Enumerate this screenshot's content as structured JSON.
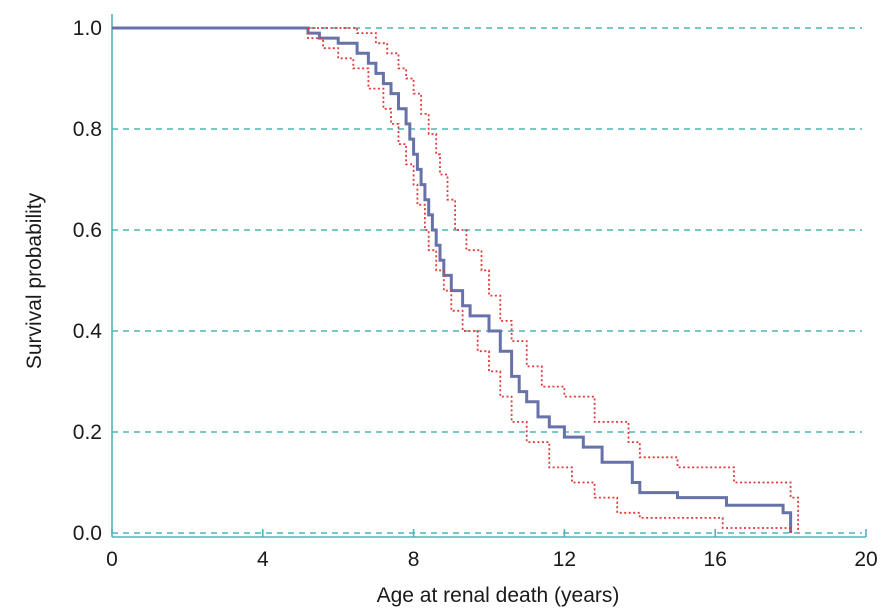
{
  "chart_data": {
    "type": "line",
    "title": "",
    "xlabel": "Age at renal death (years)",
    "ylabel": "Survival probability",
    "xlim": [
      0,
      20
    ],
    "ylim": [
      0,
      1.0
    ],
    "x_ticks": [
      "0",
      "4",
      "8",
      "12",
      "16",
      "20"
    ],
    "y_ticks": [
      "0.0",
      "0.2",
      "0.4",
      "0.6",
      "0.8",
      "1.0"
    ],
    "x_tick_values": [
      0,
      4,
      8,
      12,
      16,
      20
    ],
    "y_tick_values": [
      0,
      0.2,
      0.4,
      0.6,
      0.8,
      1.0
    ],
    "grid": "horizontal dashed",
    "colors": {
      "survival": "#6672a8",
      "ci": "#e03a3a",
      "grid": "#4fb5b5"
    },
    "series": [
      {
        "style": "solid",
        "points": [
          [
            0,
            1.0
          ],
          [
            5.2,
            1.0
          ],
          [
            5.2,
            0.99
          ],
          [
            5.5,
            0.99
          ],
          [
            5.5,
            0.98
          ],
          [
            6.0,
            0.98
          ],
          [
            6.0,
            0.97
          ],
          [
            6.5,
            0.97
          ],
          [
            6.5,
            0.95
          ],
          [
            6.8,
            0.95
          ],
          [
            6.8,
            0.93
          ],
          [
            7.0,
            0.93
          ],
          [
            7.0,
            0.91
          ],
          [
            7.2,
            0.91
          ],
          [
            7.2,
            0.89
          ],
          [
            7.4,
            0.89
          ],
          [
            7.4,
            0.87
          ],
          [
            7.6,
            0.87
          ],
          [
            7.6,
            0.84
          ],
          [
            7.8,
            0.84
          ],
          [
            7.8,
            0.81
          ],
          [
            7.9,
            0.81
          ],
          [
            7.9,
            0.78
          ],
          [
            8.0,
            0.78
          ],
          [
            8.0,
            0.75
          ],
          [
            8.1,
            0.75
          ],
          [
            8.1,
            0.72
          ],
          [
            8.2,
            0.72
          ],
          [
            8.2,
            0.69
          ],
          [
            8.3,
            0.69
          ],
          [
            8.3,
            0.66
          ],
          [
            8.4,
            0.66
          ],
          [
            8.4,
            0.63
          ],
          [
            8.5,
            0.63
          ],
          [
            8.5,
            0.6
          ],
          [
            8.6,
            0.6
          ],
          [
            8.6,
            0.57
          ],
          [
            8.7,
            0.57
          ],
          [
            8.7,
            0.54
          ],
          [
            8.8,
            0.54
          ],
          [
            8.8,
            0.51
          ],
          [
            9.0,
            0.51
          ],
          [
            9.0,
            0.48
          ],
          [
            9.3,
            0.48
          ],
          [
            9.3,
            0.45
          ],
          [
            9.5,
            0.45
          ],
          [
            9.5,
            0.43
          ],
          [
            10.0,
            0.43
          ],
          [
            10.0,
            0.4
          ],
          [
            10.3,
            0.4
          ],
          [
            10.3,
            0.36
          ],
          [
            10.6,
            0.36
          ],
          [
            10.6,
            0.31
          ],
          [
            10.8,
            0.31
          ],
          [
            10.8,
            0.28
          ],
          [
            11.0,
            0.28
          ],
          [
            11.0,
            0.26
          ],
          [
            11.3,
            0.26
          ],
          [
            11.3,
            0.23
          ],
          [
            11.6,
            0.23
          ],
          [
            11.6,
            0.21
          ],
          [
            12.0,
            0.21
          ],
          [
            12.0,
            0.19
          ],
          [
            12.5,
            0.19
          ],
          [
            12.5,
            0.17
          ],
          [
            13.0,
            0.17
          ],
          [
            13.0,
            0.14
          ],
          [
            13.8,
            0.14
          ],
          [
            13.8,
            0.1
          ],
          [
            14.0,
            0.1
          ],
          [
            14.0,
            0.08
          ],
          [
            15.0,
            0.08
          ],
          [
            15.0,
            0.07
          ],
          [
            16.3,
            0.07
          ],
          [
            16.3,
            0.055
          ],
          [
            17.8,
            0.055
          ],
          [
            17.8,
            0.04
          ],
          [
            18.0,
            0.04
          ],
          [
            18.0,
            0.0
          ]
        ]
      },
      {
        "style": "dotted",
        "points": [
          [
            5.2,
            1.0
          ],
          [
            6.5,
            1.0
          ],
          [
            6.5,
            0.99
          ],
          [
            7.0,
            0.99
          ],
          [
            7.0,
            0.97
          ],
          [
            7.3,
            0.97
          ],
          [
            7.3,
            0.95
          ],
          [
            7.6,
            0.95
          ],
          [
            7.6,
            0.92
          ],
          [
            7.8,
            0.92
          ],
          [
            7.8,
            0.9
          ],
          [
            8.0,
            0.9
          ],
          [
            8.0,
            0.87
          ],
          [
            8.2,
            0.87
          ],
          [
            8.2,
            0.83
          ],
          [
            8.4,
            0.83
          ],
          [
            8.4,
            0.79
          ],
          [
            8.6,
            0.79
          ],
          [
            8.6,
            0.75
          ],
          [
            8.7,
            0.75
          ],
          [
            8.7,
            0.71
          ],
          [
            8.9,
            0.71
          ],
          [
            8.9,
            0.66
          ],
          [
            9.1,
            0.66
          ],
          [
            9.1,
            0.6
          ],
          [
            9.4,
            0.6
          ],
          [
            9.4,
            0.56
          ],
          [
            9.8,
            0.56
          ],
          [
            9.8,
            0.52
          ],
          [
            10.0,
            0.52
          ],
          [
            10.0,
            0.47
          ],
          [
            10.3,
            0.47
          ],
          [
            10.3,
            0.42
          ],
          [
            10.6,
            0.42
          ],
          [
            10.6,
            0.38
          ],
          [
            11.0,
            0.38
          ],
          [
            11.0,
            0.33
          ],
          [
            11.4,
            0.33
          ],
          [
            11.4,
            0.29
          ],
          [
            12.0,
            0.29
          ],
          [
            12.0,
            0.27
          ],
          [
            12.8,
            0.27
          ],
          [
            12.8,
            0.22
          ],
          [
            13.7,
            0.22
          ],
          [
            13.7,
            0.18
          ],
          [
            14.0,
            0.18
          ],
          [
            14.0,
            0.15
          ],
          [
            15.0,
            0.15
          ],
          [
            15.0,
            0.13
          ],
          [
            16.5,
            0.13
          ],
          [
            16.5,
            0.1
          ],
          [
            18.0,
            0.1
          ],
          [
            18.0,
            0.07
          ],
          [
            18.2,
            0.07
          ],
          [
            18.2,
            0.0
          ]
        ]
      },
      {
        "style": "dotted",
        "points": [
          [
            5.2,
            1.0
          ],
          [
            5.2,
            0.98
          ],
          [
            5.6,
            0.98
          ],
          [
            5.6,
            0.96
          ],
          [
            6.0,
            0.96
          ],
          [
            6.0,
            0.94
          ],
          [
            6.4,
            0.94
          ],
          [
            6.4,
            0.92
          ],
          [
            6.8,
            0.92
          ],
          [
            6.8,
            0.88
          ],
          [
            7.2,
            0.88
          ],
          [
            7.2,
            0.84
          ],
          [
            7.4,
            0.84
          ],
          [
            7.4,
            0.81
          ],
          [
            7.6,
            0.81
          ],
          [
            7.6,
            0.77
          ],
          [
            7.8,
            0.77
          ],
          [
            7.8,
            0.73
          ],
          [
            8.0,
            0.73
          ],
          [
            8.0,
            0.69
          ],
          [
            8.1,
            0.69
          ],
          [
            8.1,
            0.65
          ],
          [
            8.3,
            0.65
          ],
          [
            8.3,
            0.6
          ],
          [
            8.4,
            0.6
          ],
          [
            8.4,
            0.56
          ],
          [
            8.6,
            0.56
          ],
          [
            8.6,
            0.52
          ],
          [
            8.8,
            0.52
          ],
          [
            8.8,
            0.48
          ],
          [
            9.0,
            0.48
          ],
          [
            9.0,
            0.44
          ],
          [
            9.3,
            0.44
          ],
          [
            9.3,
            0.4
          ],
          [
            9.7,
            0.4
          ],
          [
            9.7,
            0.36
          ],
          [
            10.0,
            0.36
          ],
          [
            10.0,
            0.32
          ],
          [
            10.3,
            0.32
          ],
          [
            10.3,
            0.27
          ],
          [
            10.6,
            0.27
          ],
          [
            10.6,
            0.22
          ],
          [
            11.0,
            0.22
          ],
          [
            11.0,
            0.18
          ],
          [
            11.6,
            0.18
          ],
          [
            11.6,
            0.13
          ],
          [
            12.2,
            0.13
          ],
          [
            12.2,
            0.1
          ],
          [
            12.8,
            0.1
          ],
          [
            12.8,
            0.07
          ],
          [
            13.4,
            0.07
          ],
          [
            13.4,
            0.04
          ],
          [
            14.0,
            0.04
          ],
          [
            14.0,
            0.03
          ],
          [
            16.2,
            0.03
          ],
          [
            16.2,
            0.01
          ],
          [
            18.0,
            0.01
          ],
          [
            18.0,
            0.0
          ]
        ]
      }
    ]
  }
}
